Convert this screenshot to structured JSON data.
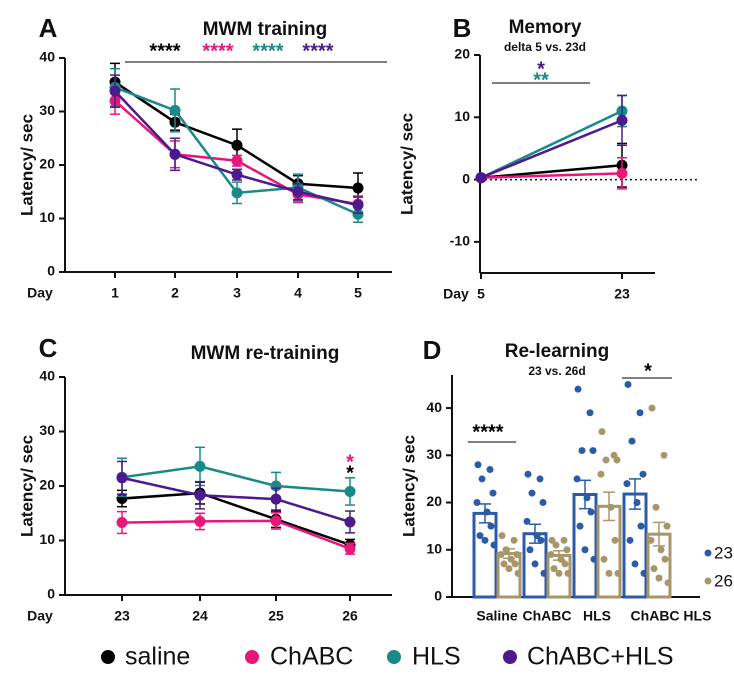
{
  "chart_data": [
    {
      "type": "line",
      "panel": "A",
      "title": "MWM training",
      "ylabel": "Latency/ sec",
      "xlabel": "Day",
      "categories": [
        "1",
        "2",
        "3",
        "4",
        "5"
      ],
      "ylim": [
        0,
        40
      ],
      "yticks": [
        0,
        10,
        20,
        30,
        40
      ],
      "series": [
        {
          "name": "saline",
          "color": "#000000",
          "values": [
            35.5,
            28,
            23.7,
            16.5,
            15.7
          ],
          "errors": [
            3.5,
            1.5,
            3,
            1.5,
            2.8
          ]
        },
        {
          "name": "ChABC",
          "color": "#e8177a",
          "values": [
            32,
            22,
            20.8,
            14.5,
            12.7
          ],
          "errors": [
            2.5,
            2.5,
            1,
            1.5,
            1.5
          ]
        },
        {
          "name": "HLS",
          "color": "#1a8a88",
          "values": [
            34.5,
            30.2,
            14.8,
            15.8,
            10.8
          ],
          "errors": [
            3.5,
            4,
            2,
            2.5,
            1.5
          ]
        },
        {
          "name": "ChABC+HLS",
          "color": "#4b1a8c",
          "values": [
            33.8,
            22,
            18.2,
            15,
            12.5
          ],
          "errors": [
            3,
            3,
            1,
            1.5,
            1.5
          ]
        }
      ],
      "annotations": [
        {
          "text": "****",
          "color": "#000000"
        },
        {
          "text": "****",
          "color": "#e8177a"
        },
        {
          "text": "****",
          "color": "#1a8a88"
        },
        {
          "text": "****",
          "color": "#4b1a8c"
        }
      ]
    },
    {
      "type": "line",
      "panel": "B",
      "title": "Memory",
      "subtitle": "delta 5 vs. 23d",
      "ylabel": "Latency/ sec",
      "xlabel": "Day",
      "categories": [
        "5",
        "23"
      ],
      "ylim": [
        -15,
        20
      ],
      "yticks": [
        -10,
        0,
        10,
        20
      ],
      "zero_line": true,
      "series": [
        {
          "name": "saline",
          "color": "#000000",
          "values": [
            0.3,
            2.3
          ],
          "errors": [
            0,
            3.5
          ]
        },
        {
          "name": "ChABC",
          "color": "#e8177a",
          "values": [
            0.3,
            1.0
          ],
          "errors": [
            0,
            2.5
          ]
        },
        {
          "name": "HLS",
          "color": "#1a8a88",
          "values": [
            0.3,
            11
          ],
          "errors": [
            0,
            2.5
          ]
        },
        {
          "name": "ChABC+HLS",
          "color": "#4b1a8c",
          "values": [
            0.3,
            9.5
          ],
          "errors": [
            0,
            4
          ]
        }
      ],
      "annotations": [
        {
          "text": "*",
          "color": "#4b1a8c"
        },
        {
          "text": "**",
          "color": "#1a8a88"
        }
      ]
    },
    {
      "type": "line",
      "panel": "C",
      "title": "MWM re-training",
      "ylabel": "Latency/ sec",
      "xlabel": "Day",
      "categories": [
        "23",
        "24",
        "25",
        "26"
      ],
      "ylim": [
        0,
        40
      ],
      "yticks": [
        0,
        10,
        20,
        30,
        40
      ],
      "series": [
        {
          "name": "saline",
          "color": "#000000",
          "values": [
            17.7,
            18.7,
            13.9,
            9.2
          ],
          "errors": [
            1.5,
            2,
            1.5,
            1
          ]
        },
        {
          "name": "ChABC",
          "color": "#e8177a",
          "values": [
            13.3,
            13.5,
            13.6,
            8.5
          ],
          "errors": [
            2,
            1.5,
            1.5,
            1
          ]
        },
        {
          "name": "HLS",
          "color": "#1a8a88",
          "values": [
            21.6,
            23.6,
            20,
            19
          ],
          "errors": [
            3.5,
            3.5,
            2.5,
            2.5
          ]
        },
        {
          "name": "ChABC+HLS",
          "color": "#4b1a8c",
          "values": [
            21.5,
            18.3,
            17.6,
            13.4
          ],
          "errors": [
            3,
            2.5,
            2,
            2
          ]
        }
      ],
      "annotations": [
        {
          "text": "*",
          "color": "#e8177a"
        },
        {
          "text": "*",
          "color": "#000000"
        }
      ]
    },
    {
      "type": "bar",
      "panel": "D",
      "title": "Re-learning",
      "subtitle": "23 vs. 26d",
      "ylabel": "Latency/ sec",
      "categories": [
        "Saline",
        "ChABC",
        "HLS",
        "ChABC HLS"
      ],
      "ylim": [
        0,
        47
      ],
      "yticks": [
        0,
        10,
        20,
        30,
        40
      ],
      "series": [
        {
          "name": "23",
          "color": "#2b5ba8",
          "values": [
            17.7,
            13.4,
            21.7,
            21.8
          ],
          "errors": [
            2,
            2,
            3,
            3.2
          ],
          "points": [
            [
              28,
              27,
              25,
              22,
              20,
              18,
              15,
              13,
              12,
              11
            ],
            [
              26,
              25,
              22,
              20,
              16,
              13,
              12,
              10,
              7,
              5
            ],
            [
              44,
              39,
              31,
              31,
              25,
              21,
              18,
              15,
              10,
              8
            ],
            [
              45,
              39,
              33,
              26,
              24,
              20,
              15,
              12,
              7,
              5
            ]
          ]
        },
        {
          "name": "26",
          "color": "#a8956a",
          "values": [
            9.2,
            8.8,
            19.2,
            13.3
          ],
          "errors": [
            1,
            1,
            3,
            2.5
          ],
          "points": [
            [
              13,
              12,
              10,
              9,
              9,
              8,
              7,
              7,
              6,
              5
            ],
            [
              12,
              12,
              11,
              10,
              9,
              8,
              7,
              6,
              5,
              5
            ],
            [
              35,
              30,
              29,
              29,
              26,
              19,
              12,
              8,
              5,
              5
            ],
            [
              40,
              30,
              19,
              15,
              12,
              10,
              8,
              6,
              4,
              3
            ]
          ]
        }
      ],
      "annotations": [
        {
          "text": "****",
          "color": "#000000"
        },
        {
          "text": "*",
          "color": "#000000"
        }
      ]
    }
  ]
}
